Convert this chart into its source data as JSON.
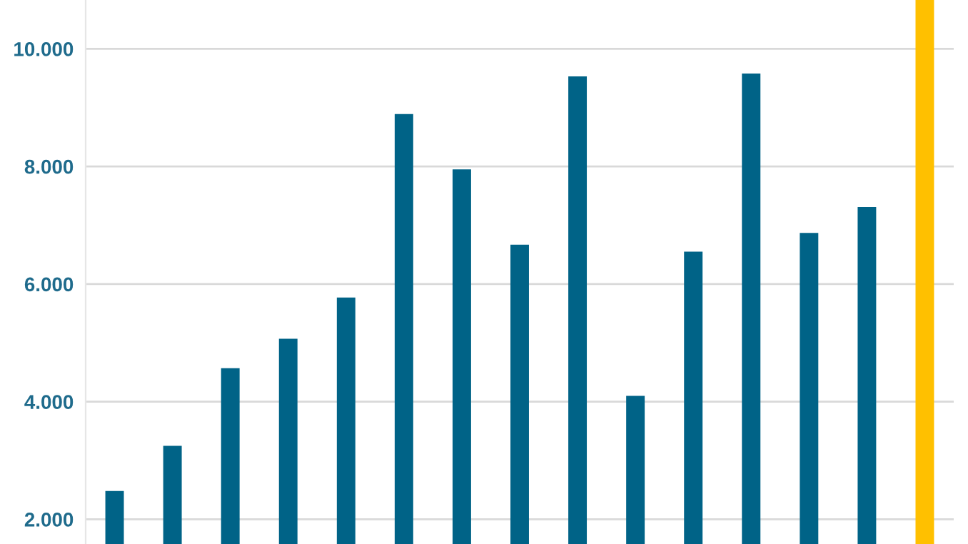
{
  "chart_data": {
    "type": "bar",
    "categories": [
      null,
      null,
      null,
      null,
      null,
      null,
      null,
      null,
      null,
      null,
      null,
      null,
      null,
      null,
      null
    ],
    "values": [
      2480,
      3250,
      4570,
      5070,
      5770,
      8890,
      7950,
      6670,
      9530,
      4100,
      6550,
      9580,
      6870,
      7310,
      10830
    ],
    "colors": [
      "#006387",
      "#006387",
      "#006387",
      "#006387",
      "#006387",
      "#006387",
      "#006387",
      "#006387",
      "#006387",
      "#006387",
      "#006387",
      "#006387",
      "#006387",
      "#006387",
      "#ffc000"
    ],
    "ylim": [
      1580,
      10830
    ],
    "yticks": [
      {
        "value": 2000,
        "label": "2.000"
      },
      {
        "value": 4000,
        "label": "4.000"
      },
      {
        "value": 6000,
        "label": "6.000"
      },
      {
        "value": 8000,
        "label": "8.000"
      },
      {
        "value": 10000,
        "label": "10.000"
      }
    ],
    "grid": "y",
    "tick_labels": "y"
  }
}
